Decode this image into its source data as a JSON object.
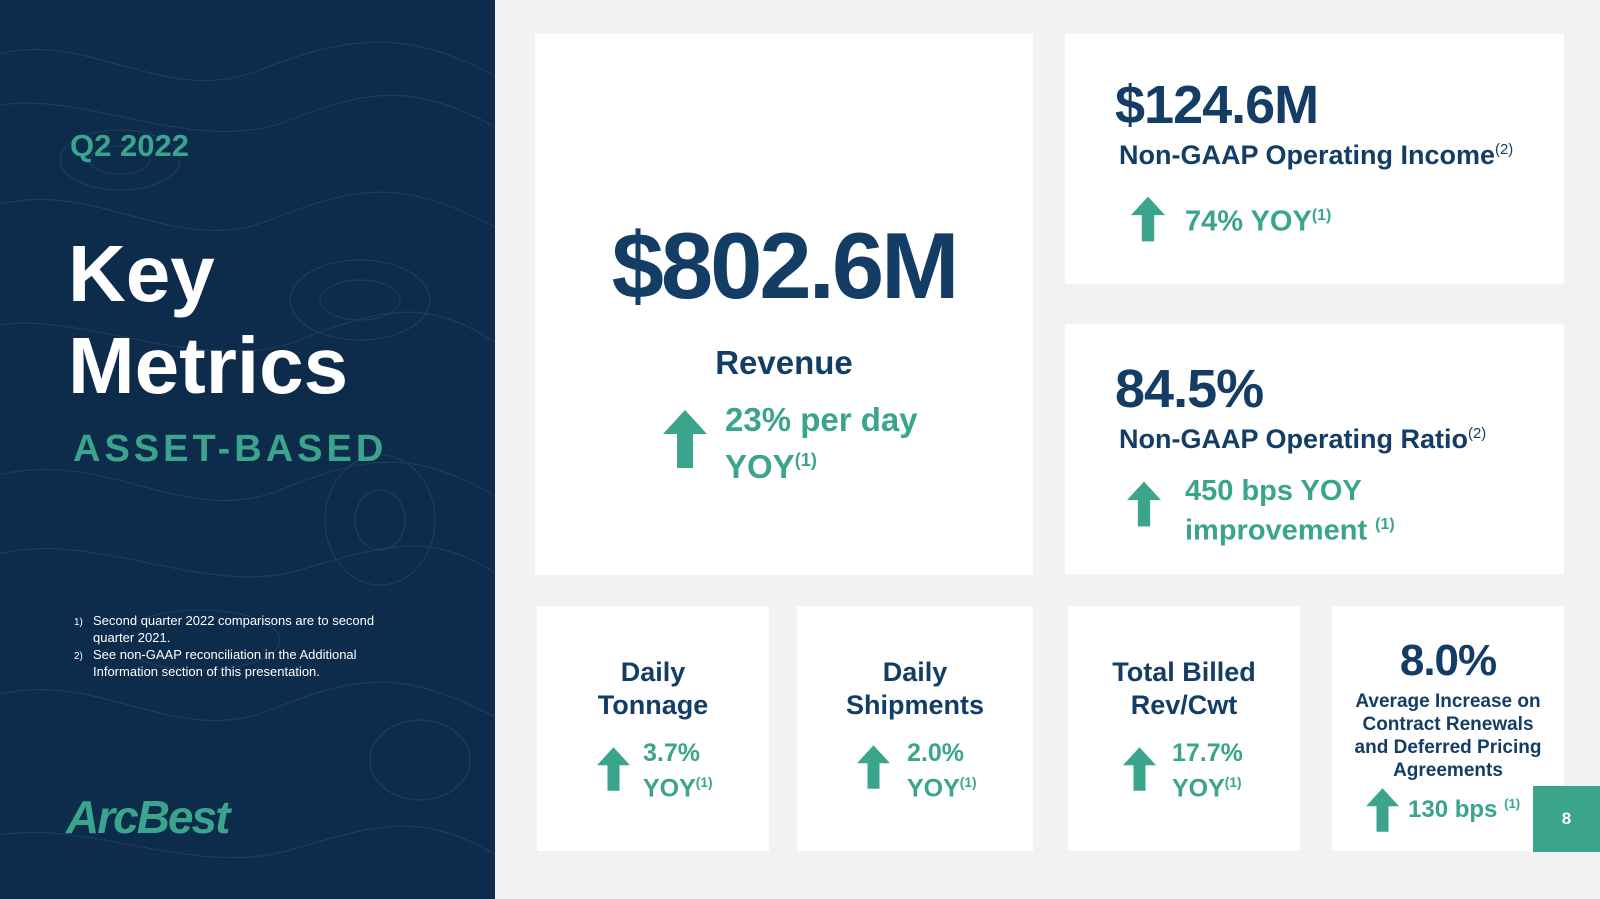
{
  "sidebar": {
    "period": "Q2 2022",
    "title_line1": "Key",
    "title_line2": "Metrics",
    "segment": "ASSET-BASED",
    "footnotes": [
      {
        "marker": "1)",
        "text": "Second quarter 2022 comparisons are to second quarter 2021."
      },
      {
        "marker": "2)",
        "text": "See non-GAAP reconciliation in the Additional Information section of this presentation."
      }
    ],
    "logo": "ArcBest"
  },
  "revenue": {
    "value": "$802.6M",
    "label": "Revenue",
    "change_line1": "23% per day",
    "change_line2": "YOY",
    "footnote": "(1)"
  },
  "operating_income": {
    "value": "$124.6M",
    "label": "Non-GAAP Operating Income",
    "label_footnote": "(2)",
    "change": "74% YOY",
    "change_footnote": "(1)"
  },
  "operating_ratio": {
    "value": "84.5%",
    "label": "Non-GAAP Operating Ratio",
    "label_footnote": "(2)",
    "change_line1": "450 bps YOY",
    "change_line2": "improvement",
    "change_footnote": "(1)"
  },
  "daily_tonnage": {
    "label_line1": "Daily",
    "label_line2": "Tonnage",
    "change_line1": "3.7%",
    "change_line2": "YOY",
    "footnote": "(1)"
  },
  "daily_shipments": {
    "label_line1": "Daily",
    "label_line2": "Shipments",
    "change_line1": "2.0%",
    "change_line2": "YOY",
    "footnote": "(1)"
  },
  "billed_rev": {
    "label_line1": "Total Billed",
    "label_line2": "Rev/Cwt",
    "change_line1": "17.7%",
    "change_line2": "YOY",
    "footnote": "(1)"
  },
  "contract_renewals": {
    "value": "8.0%",
    "label_line1": "Average Increase on",
    "label_line2": "Contract Renewals",
    "label_line3": "and Deferred Pricing",
    "label_line4": "Agreements",
    "change": "130 bps",
    "footnote": "(1)"
  },
  "page_number": "8",
  "colors": {
    "navy": "#143d66",
    "sidebar_bg": "#0d2b4a",
    "teal": "#3aa48c",
    "background": "#f2f2f2"
  }
}
